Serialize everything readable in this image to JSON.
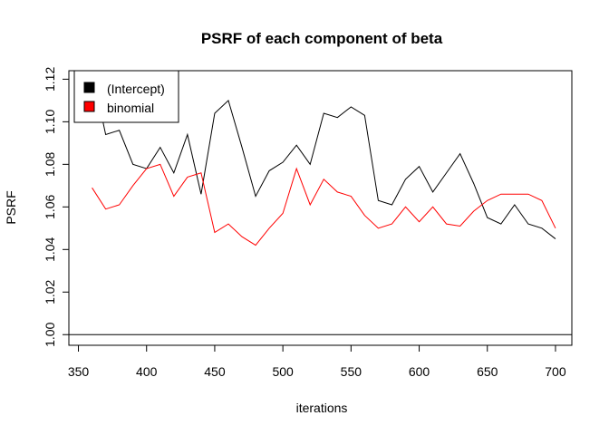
{
  "chart_data": {
    "type": "line",
    "title": "PSRF of each component of beta",
    "xlabel": "iterations",
    "ylabel": "PSRF",
    "xlim": [
      343,
      712
    ],
    "ylim": [
      0.995,
      1.124
    ],
    "xticks": [
      350,
      400,
      450,
      500,
      550,
      600,
      650,
      700
    ],
    "yticks": [
      1.0,
      1.02,
      1.04,
      1.06,
      1.08,
      1.1,
      1.12
    ],
    "reference_line": 1.0,
    "grid": false,
    "legend_position": "top-left",
    "x": [
      360,
      370,
      380,
      390,
      400,
      410,
      420,
      430,
      440,
      450,
      460,
      470,
      480,
      490,
      500,
      510,
      520,
      530,
      540,
      550,
      560,
      570,
      580,
      590,
      600,
      610,
      620,
      630,
      640,
      650,
      660,
      670,
      680,
      690,
      700
    ],
    "series": [
      {
        "name": "(Intercept)",
        "color": "#000000",
        "values": [
          1.124,
          1.094,
          1.096,
          1.08,
          1.078,
          1.088,
          1.076,
          1.094,
          1.066,
          1.104,
          1.11,
          1.088,
          1.065,
          1.077,
          1.081,
          1.089,
          1.08,
          1.104,
          1.102,
          1.107,
          1.103,
          1.063,
          1.061,
          1.073,
          1.079,
          1.067,
          1.076,
          1.085,
          1.071,
          1.055,
          1.052,
          1.061,
          1.052,
          1.05,
          1.045
        ]
      },
      {
        "name": "binomial",
        "color": "#ff0000",
        "values": [
          1.069,
          1.059,
          1.061,
          1.07,
          1.078,
          1.08,
          1.065,
          1.074,
          1.076,
          1.048,
          1.052,
          1.046,
          1.042,
          1.05,
          1.057,
          1.078,
          1.061,
          1.073,
          1.067,
          1.065,
          1.056,
          1.05,
          1.052,
          1.06,
          1.053,
          1.06,
          1.052,
          1.051,
          1.058,
          1.063,
          1.066,
          1.066,
          1.066,
          1.063,
          1.05
        ]
      }
    ]
  }
}
